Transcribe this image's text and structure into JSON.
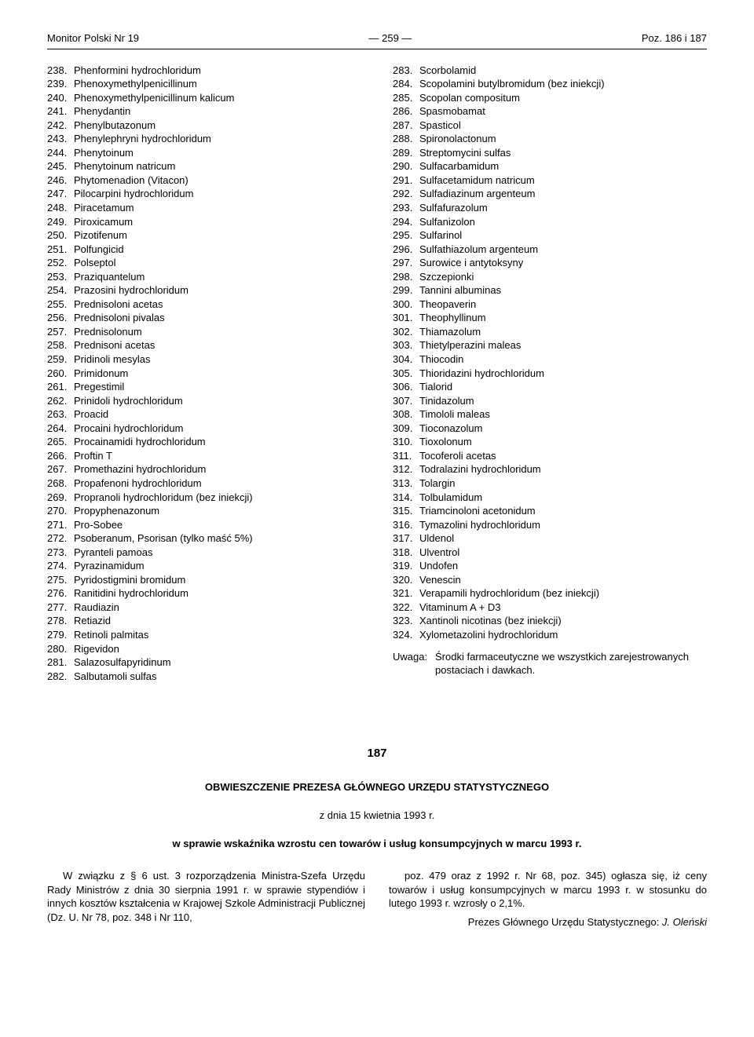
{
  "header": {
    "left": "Monitor Polski Nr 19",
    "center": "—   259   —",
    "right": "Poz. 186 i 187"
  },
  "list_left": [
    {
      "n": "238.",
      "t": "Phenformini hydrochloridum"
    },
    {
      "n": "239.",
      "t": "Phenoxymethylpenicillinum"
    },
    {
      "n": "240.",
      "t": "Phenoxymethylpenicillinum kalicum"
    },
    {
      "n": "241.",
      "t": "Phenydantin"
    },
    {
      "n": "242.",
      "t": "Phenylbutazonum"
    },
    {
      "n": "243.",
      "t": "Phenylephryni hydrochloridum"
    },
    {
      "n": "244.",
      "t": "Phenytoinum"
    },
    {
      "n": "245.",
      "t": "Phenytoinum natricum"
    },
    {
      "n": "246.",
      "t": "Phytomenadion (Vitacon)"
    },
    {
      "n": "247.",
      "t": "Pilocarpini hydrochloridum"
    },
    {
      "n": "248.",
      "t": "Piracetamum"
    },
    {
      "n": "249.",
      "t": "Piroxicamum"
    },
    {
      "n": "250.",
      "t": "Pizotifenum"
    },
    {
      "n": "251.",
      "t": "Polfungicid"
    },
    {
      "n": "252.",
      "t": "Polseptol"
    },
    {
      "n": "253.",
      "t": "Praziquantelum"
    },
    {
      "n": "254.",
      "t": "Prazosini hydrochloridum"
    },
    {
      "n": "255.",
      "t": "Prednisoloni acetas"
    },
    {
      "n": "256.",
      "t": "Prednisoloni pivalas"
    },
    {
      "n": "257.",
      "t": "Prednisolonum"
    },
    {
      "n": "258.",
      "t": "Prednisoni acetas"
    },
    {
      "n": "259.",
      "t": "Pridinoli mesylas"
    },
    {
      "n": "260.",
      "t": "Primidonum"
    },
    {
      "n": "261.",
      "t": "Pregestimil"
    },
    {
      "n": "262.",
      "t": "Prinidoli hydrochloridum"
    },
    {
      "n": "263.",
      "t": "Proacid"
    },
    {
      "n": "264.",
      "t": "Procaini hydrochloridum"
    },
    {
      "n": "265.",
      "t": "Procainamidi hydrochloridum"
    },
    {
      "n": "266.",
      "t": "Proftin T"
    },
    {
      "n": "267.",
      "t": "Promethazini hydrochloridum"
    },
    {
      "n": "268.",
      "t": "Propafenoni hydrochloridum"
    },
    {
      "n": "269.",
      "t": "Propranoli hydrochloridum (bez iniekcji)"
    },
    {
      "n": "270.",
      "t": "Propyphenazonum"
    },
    {
      "n": "271.",
      "t": "Pro-Sobee"
    },
    {
      "n": "272.",
      "t": "Psoberanum, Psorisan (tylko maść 5%)"
    },
    {
      "n": "273.",
      "t": "Pyranteli pamoas"
    },
    {
      "n": "274.",
      "t": "Pyrazinamidum"
    },
    {
      "n": "275.",
      "t": "Pyridostigmini bromidum"
    },
    {
      "n": "276.",
      "t": "Ranitidini hydrochloridum"
    },
    {
      "n": "277.",
      "t": "Raudiazin"
    },
    {
      "n": "278.",
      "t": "Retiazid"
    },
    {
      "n": "279.",
      "t": "Retinoli palmitas"
    },
    {
      "n": "280.",
      "t": "Rigevidon"
    },
    {
      "n": "281.",
      "t": "Salazosulfapyridinum"
    },
    {
      "n": "282.",
      "t": "Salbutamoli sulfas"
    }
  ],
  "list_right": [
    {
      "n": "283.",
      "t": "Scorbolamid"
    },
    {
      "n": "284.",
      "t": "Scopolamini butylbromidum (bez iniekcji)"
    },
    {
      "n": "285.",
      "t": "Scopolan compositum"
    },
    {
      "n": "286.",
      "t": "Spasmobamat"
    },
    {
      "n": "287.",
      "t": "Spasticol"
    },
    {
      "n": "288.",
      "t": "Spironolactonum"
    },
    {
      "n": "289.",
      "t": "Streptomycini sulfas"
    },
    {
      "n": "290.",
      "t": "Sulfacarbamidum"
    },
    {
      "n": "291.",
      "t": "Sulfacetamidum natricum"
    },
    {
      "n": "292.",
      "t": "Sulfadiazinum argenteum"
    },
    {
      "n": "293.",
      "t": "Sulfafurazolum"
    },
    {
      "n": "294.",
      "t": "Sulfanizolon"
    },
    {
      "n": "295.",
      "t": "Sulfarinol"
    },
    {
      "n": "296.",
      "t": "Sulfathiazolum argenteum"
    },
    {
      "n": "297.",
      "t": "Surowice i antytoksyny"
    },
    {
      "n": "298.",
      "t": "Szczepionki"
    },
    {
      "n": "299.",
      "t": "Tannini albuminas"
    },
    {
      "n": "300.",
      "t": "Theopaverin"
    },
    {
      "n": "301.",
      "t": "Theophyllinum"
    },
    {
      "n": "302.",
      "t": "Thiamazolum"
    },
    {
      "n": "303.",
      "t": "Thietylperazini maleas"
    },
    {
      "n": "304.",
      "t": "Thiocodin"
    },
    {
      "n": "305.",
      "t": "Thioridazini hydrochloridum"
    },
    {
      "n": "306.",
      "t": "Tialorid"
    },
    {
      "n": "307.",
      "t": "Tinidazolum"
    },
    {
      "n": "308.",
      "t": "Timololi maleas"
    },
    {
      "n": "309.",
      "t": "Tioconazolum"
    },
    {
      "n": "310.",
      "t": "Tioxolonum"
    },
    {
      "n": "311.",
      "t": "Tocoferoli acetas"
    },
    {
      "n": "312.",
      "t": "Todralazini hydrochloridum"
    },
    {
      "n": "313.",
      "t": "Tolargin"
    },
    {
      "n": "314.",
      "t": "Tolbulamidum"
    },
    {
      "n": "315.",
      "t": "Triamcinoloni acetonidum"
    },
    {
      "n": "316.",
      "t": "Tymazolini hydrochloridum"
    },
    {
      "n": "317.",
      "t": "Uldenol"
    },
    {
      "n": "318.",
      "t": "Ulventrol"
    },
    {
      "n": "319.",
      "t": "Undofen"
    },
    {
      "n": "320.",
      "t": "Venescin"
    },
    {
      "n": "321.",
      "t": "Verapamili hydrochloridum (bez iniekcji)"
    },
    {
      "n": "322.",
      "t": "Vitaminum A + D3"
    },
    {
      "n": "323.",
      "t": "Xantinoli nicotinas (bez iniekcji)"
    },
    {
      "n": "324.",
      "t": "Xylometazolini hydrochloridum"
    }
  ],
  "note": {
    "label": "Uwaga:",
    "text": "Środki farmaceutyczne we wszystkich zarejestrowanych postaciach i dawkach."
  },
  "section": {
    "number": "187",
    "title": "OBWIESZCZENIE PREZESA GŁÓWNEGO URZĘDU STATYSTYCZNEGO",
    "date": "z dnia 15 kwietnia 1993 r.",
    "subject": "w sprawie wskaźnika wzrostu cen towarów i usług konsumpcyjnych w marcu 1993 r.",
    "body_left": "W związku z § 6 ust. 3 rozporządzenia Ministra-Szefa Urzędu Rady Ministrów z dnia 30 sierpnia 1991 r. w sprawie stypendiów i innych kosztów kształcenia w Krajowej Szkole Administracji Publicznej (Dz. U. Nr 78, poz. 348 i Nr 110,",
    "body_right_1": "poz. 479 oraz z 1992 r. Nr 68, poz. 345) ogłasza się, iż ceny towarów i usług konsumpcyjnych w marcu 1993 r. w stosunku do lutego 1993 r. wzrosły o 2,1%.",
    "signature_prefix": "Prezes Głównego Urzędu Statystycznego: ",
    "signature_name": "J. Oleński"
  }
}
